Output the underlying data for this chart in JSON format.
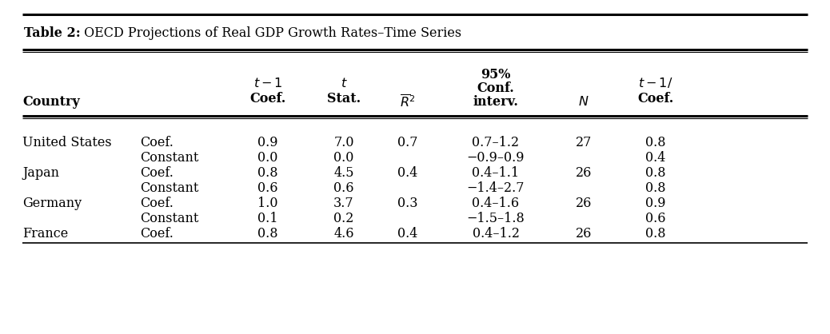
{
  "title_bold": "Table 2:",
  "title_normal": " OECD Projections of Real GDP Growth Rates–Time Series",
  "rows": [
    [
      "United States",
      "Coef.",
      "0.9",
      "7.0",
      "0.7",
      "0.7–1.2",
      "27",
      "0.8"
    ],
    [
      "",
      "Constant",
      "0.0",
      "0.0",
      "",
      "−0.9–0.9",
      "",
      "0.4"
    ],
    [
      "Japan",
      "Coef.",
      "0.8",
      "4.5",
      "0.4",
      "0.4–1.1",
      "26",
      "0.8"
    ],
    [
      "",
      "Constant",
      "0.6",
      "0.6",
      "",
      "−1.4–2.7",
      "",
      "0.8"
    ],
    [
      "Germany",
      "Coef.",
      "1.0",
      "3.7",
      "0.3",
      "0.4–1.6",
      "26",
      "0.9"
    ],
    [
      "",
      "Constant",
      "0.1",
      "0.2",
      "",
      "−1.5–1.8",
      "",
      "0.6"
    ],
    [
      "France",
      "Coef.",
      "0.8",
      "4.6",
      "0.4",
      "0.4–1.2",
      "26",
      "0.8"
    ]
  ],
  "background_color": "#ffffff",
  "text_color": "#000000",
  "figsize": [
    10.38,
    4.18
  ],
  "dpi": 100
}
